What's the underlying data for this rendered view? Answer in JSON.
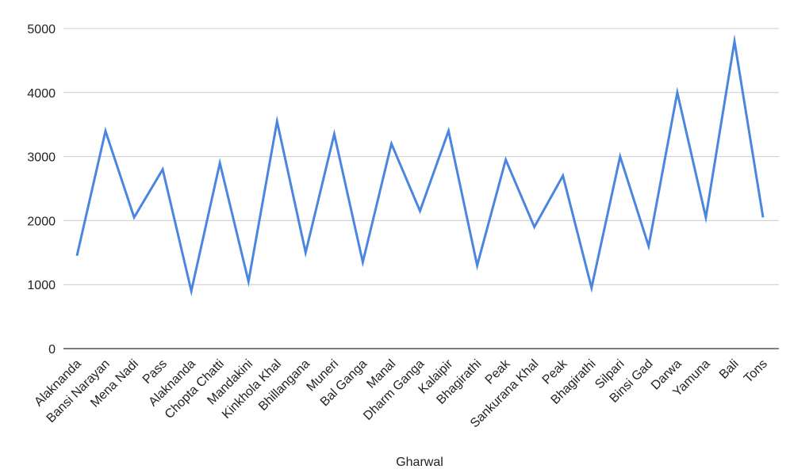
{
  "chart_data": {
    "type": "line",
    "xlabel": "Gharwal",
    "ylabel": "",
    "ylim": [
      0,
      5000
    ],
    "yticks": [
      0,
      1000,
      2000,
      3000,
      4000,
      5000
    ],
    "grid": true,
    "categories": [
      "Alaknanda",
      "Bansi Narayan",
      "Mena Nadi",
      "Pass",
      "Alaknanda",
      "Chopta Chatti",
      "Mandakini",
      "Kinkhola Khal",
      "Bhillangana",
      "Muneri",
      "Bal Ganga",
      "Manal",
      "Dharm Ganga",
      "Kalaipir",
      "Bhagirathi",
      "Peak",
      "Sankurana Khal",
      "Peak",
      "Bhagirathi",
      "Silpari",
      "Binsi Gad",
      "Darwa",
      "Yamuna",
      "Bali",
      "Tons"
    ],
    "series": [
      {
        "color": "#4a86e0",
        "values": [
          1450,
          3400,
          2050,
          2800,
          900,
          2900,
          1050,
          3550,
          1500,
          3350,
          1350,
          3200,
          2150,
          3400,
          1300,
          2950,
          1900,
          2700,
          950,
          3000,
          1600,
          4000,
          2050,
          4800,
          2050
        ]
      }
    ]
  }
}
